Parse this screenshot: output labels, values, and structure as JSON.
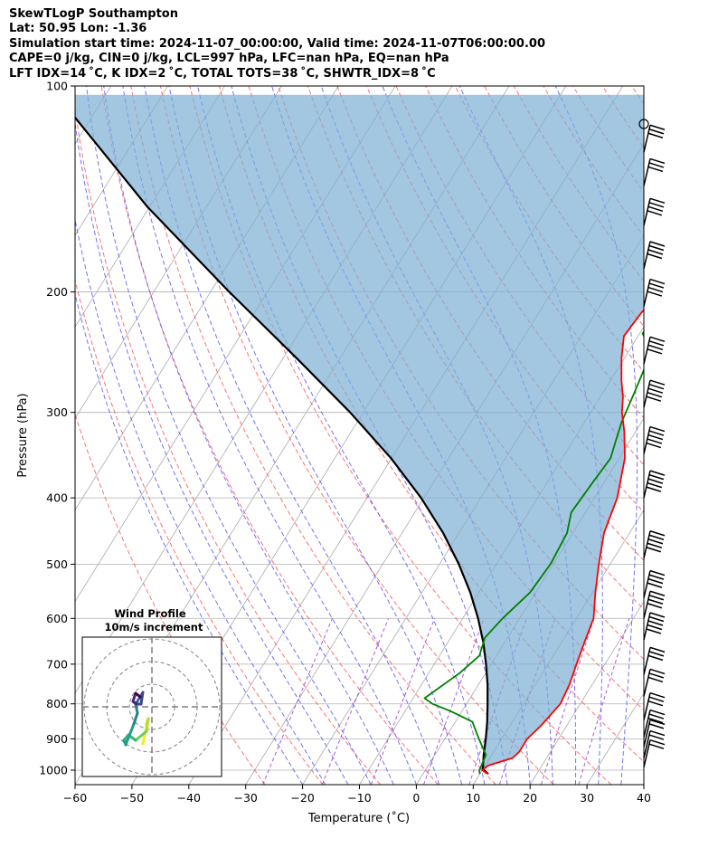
{
  "header": {
    "title": "SkewTLogP Southampton",
    "location": "Lat: 50.95   Lon: -1.36",
    "times": "Simulation start time: 2024-11-07_00:00:00, Valid time: 2024-11-07T06:00:00.00",
    "params1": "CAPE=0 j/kg, CIN=0 j/kg, LCL=997 hPa, LFC=nan hPa, EQ=nan hPa",
    "params2": "LFT IDX=14 ˚C, K IDX=2 ˚C, TOTAL TOTS=38 ˚C, SHWTR_IDX=8 ˚C"
  },
  "chart_data": {
    "type": "skewt-logp",
    "xlabel": "Temperature (˚C)",
    "ylabel": "Pressure (hPa)",
    "xlim": [
      -60,
      40
    ],
    "ylim": [
      1050,
      100
    ],
    "y_scale": "log",
    "grid": true,
    "xticks": [
      -60,
      -50,
      -40,
      -30,
      -20,
      -10,
      0,
      10,
      20,
      30,
      40
    ],
    "yticks": [
      1000,
      900,
      800,
      700,
      600,
      500,
      400,
      300,
      200,
      100
    ],
    "series": [
      {
        "role": "temperature",
        "color": "#ff0000",
        "points": [
          [
            11.5,
            1013
          ],
          [
            10,
            1000
          ],
          [
            10.5,
            985
          ],
          [
            14,
            960
          ],
          [
            14.5,
            940
          ],
          [
            14.5,
            900
          ],
          [
            15.5,
            860
          ],
          [
            16.5,
            800
          ],
          [
            16,
            750
          ],
          [
            15,
            700
          ],
          [
            14,
            650
          ],
          [
            13,
            600
          ],
          [
            10.5,
            550
          ],
          [
            8,
            500
          ],
          [
            5.5,
            450
          ],
          [
            4,
            400
          ],
          [
            1,
            350
          ],
          [
            -2,
            320
          ],
          [
            -4.5,
            300
          ],
          [
            -6,
            285
          ],
          [
            -8,
            270
          ],
          [
            -10.5,
            250
          ],
          [
            -12.5,
            232
          ],
          [
            -12,
            215
          ],
          [
            -11,
            200
          ],
          [
            -9.5,
            185
          ],
          [
            -7.5,
            170
          ],
          [
            -6,
            160
          ],
          [
            -3,
            145
          ],
          [
            0,
            130
          ],
          [
            2.5,
            118
          ],
          [
            4,
            110
          ],
          [
            5,
            104
          ],
          [
            5.5,
            100
          ]
        ]
      },
      {
        "role": "dewpoint",
        "color": "#008000",
        "points": [
          [
            10,
            1013
          ],
          [
            9.5,
            1000
          ],
          [
            9,
            950
          ],
          [
            6,
            900
          ],
          [
            3,
            850
          ],
          [
            -2,
            820
          ],
          [
            -6,
            800
          ],
          [
            -8,
            785
          ],
          [
            -4.5,
            720
          ],
          [
            -3,
            680
          ],
          [
            -4,
            640
          ],
          [
            -3,
            600
          ],
          [
            -1,
            550
          ],
          [
            -0.5,
            500
          ],
          [
            -1,
            450
          ],
          [
            -2.5,
            420
          ],
          [
            -2,
            380
          ],
          [
            -1.5,
            350
          ],
          [
            -2.5,
            330
          ],
          [
            -3.5,
            310
          ],
          [
            -4.5,
            280
          ],
          [
            -5.5,
            255
          ],
          [
            -7,
            240
          ],
          [
            -9.5,
            230
          ],
          [
            -9,
            210
          ],
          [
            -8.5,
            190
          ],
          [
            -6,
            175
          ],
          [
            -5,
            150
          ],
          [
            -4.5,
            125
          ],
          [
            -3,
            115
          ],
          [
            -1,
            110
          ],
          [
            1,
            105
          ],
          [
            2,
            100
          ]
        ]
      },
      {
        "role": "parcel-profile",
        "color": "#000000",
        "points": [
          [
            11.5,
            1013
          ],
          [
            10,
            997
          ],
          [
            8.6,
            950
          ],
          [
            7.2,
            900
          ],
          [
            5.6,
            850
          ],
          [
            3.7,
            800
          ],
          [
            1.6,
            750
          ],
          [
            -0.9,
            700
          ],
          [
            -3.8,
            650
          ],
          [
            -7.3,
            600
          ],
          [
            -11.5,
            550
          ],
          [
            -16.6,
            500
          ],
          [
            -22.8,
            450
          ],
          [
            -30.5,
            400
          ],
          [
            -40.1,
            350
          ],
          [
            -52.3,
            300
          ],
          [
            -67.6,
            250
          ],
          [
            -86.7,
            200
          ],
          [
            -110.5,
            150
          ],
          [
            -140.8,
            100
          ]
        ]
      }
    ],
    "cape_cin_fill": "between temperature and parcel-profile",
    "reference_lines": {
      "dry_adiabats_color": "#ff4d4d",
      "moist_adiabats_color": "#4d4dff",
      "mixing_ratio_color": "#9932cc",
      "isotherm_color": "#aaaaaa"
    },
    "wind_barbs": "right side column, 100 to 1013 hPa",
    "hodograph": {
      "title1": "Wind Profile",
      "title2": "10m/s increment",
      "rings_ms": [
        10,
        20,
        30
      ],
      "colormap": "viridis"
    }
  }
}
